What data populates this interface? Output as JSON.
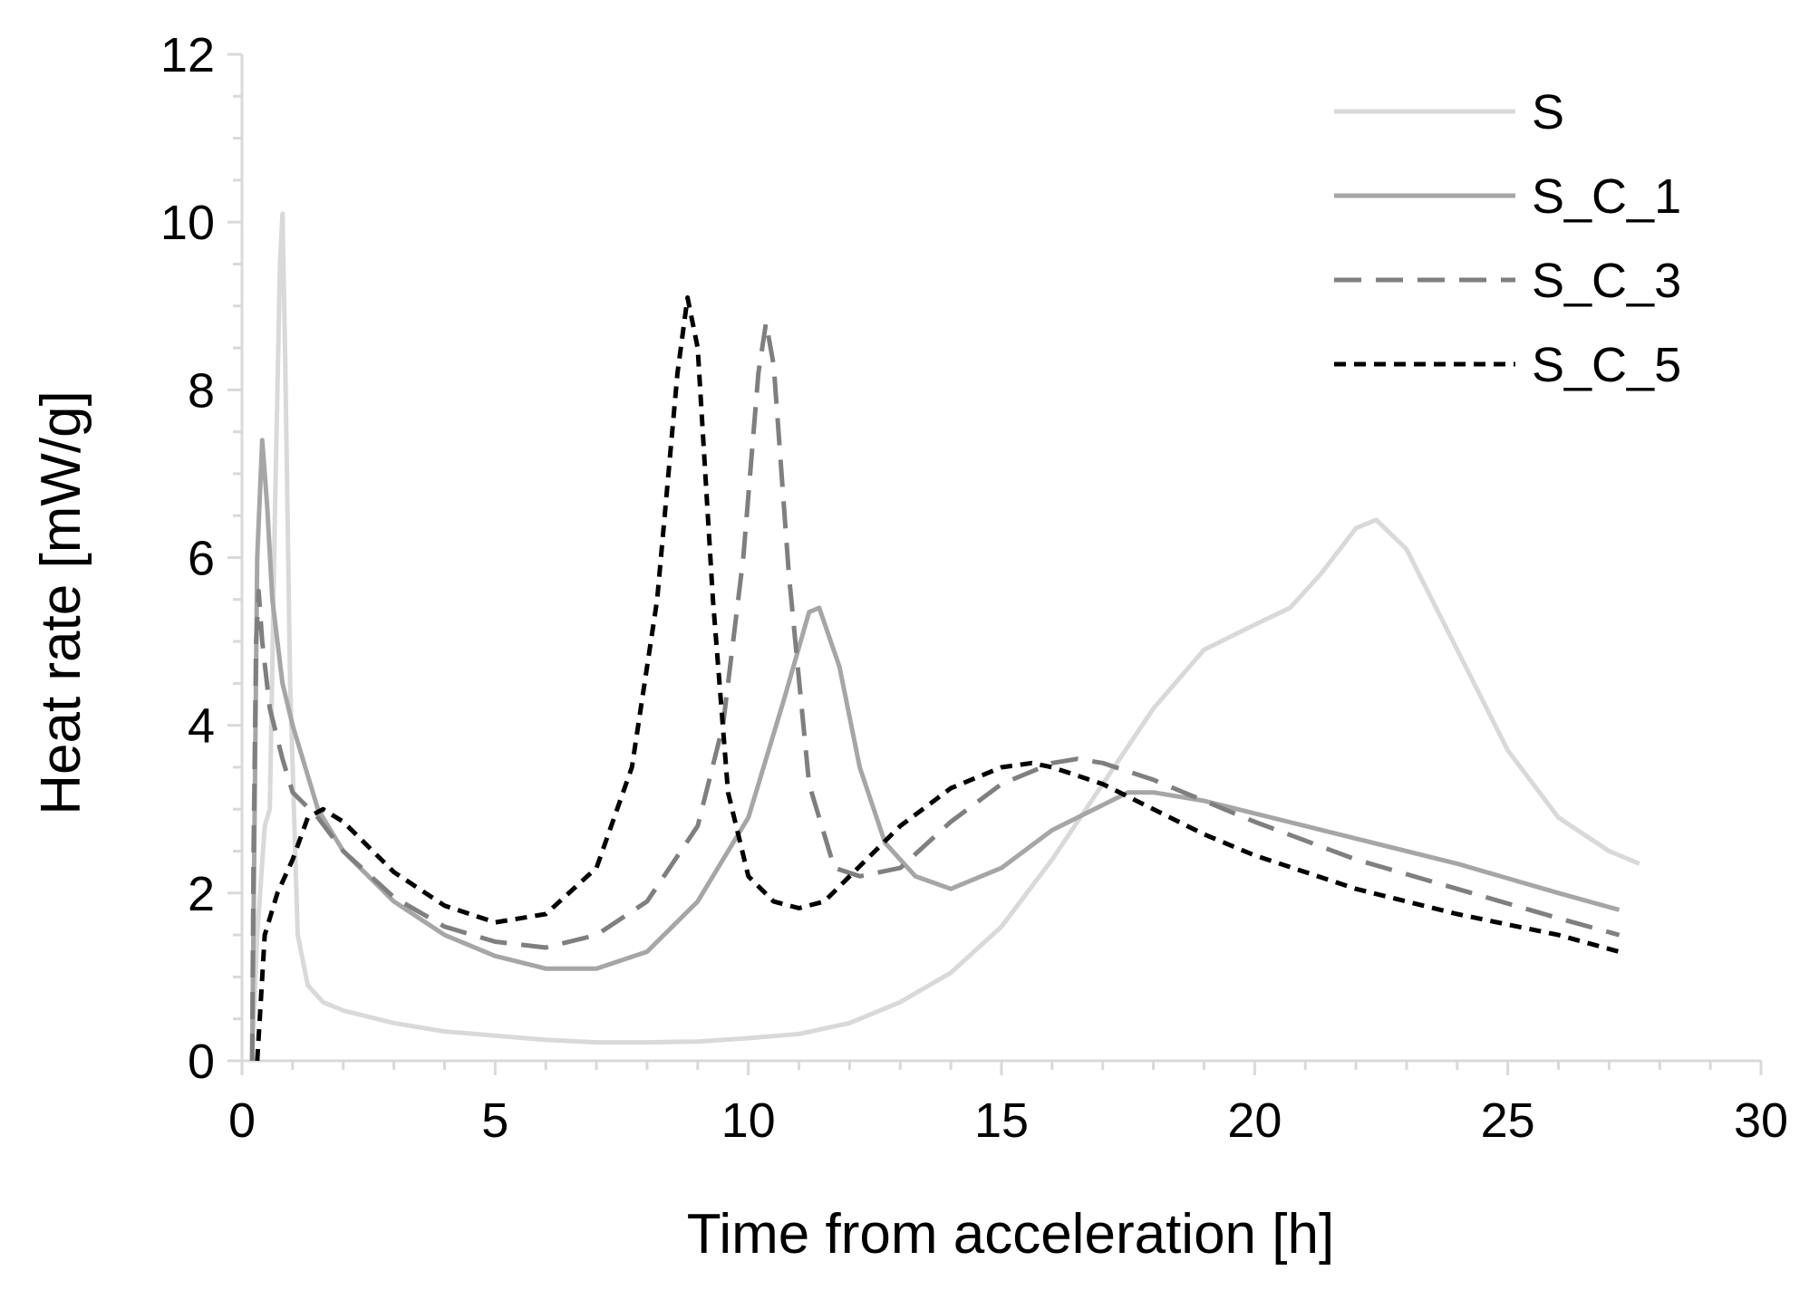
{
  "chart_data": {
    "type": "line",
    "title": "",
    "xlabel": "Time from acceleration [h]",
    "ylabel": "Heat rate [mW/g]",
    "xlim": [
      0,
      30
    ],
    "ylim": [
      0,
      12
    ],
    "x_ticks": [
      0,
      5,
      10,
      15,
      20,
      25,
      30
    ],
    "y_ticks": [
      0,
      2,
      4,
      6,
      8,
      10,
      12
    ],
    "x_tick_labels": [
      "0",
      "5",
      "10",
      "15",
      "20",
      "25",
      "30"
    ],
    "y_tick_labels": [
      "0",
      "2",
      "4",
      "6",
      "8",
      "10",
      "12"
    ],
    "grid": false,
    "legend_position": "top-right",
    "series": [
      {
        "name": "S",
        "color": "#d9d9d9",
        "dash": "solid",
        "points": [
          [
            0.2,
            0.0
          ],
          [
            0.3,
            1.5
          ],
          [
            0.45,
            2.8
          ],
          [
            0.55,
            3.0
          ],
          [
            0.65,
            6.5
          ],
          [
            0.75,
            9.5
          ],
          [
            0.8,
            10.1
          ],
          [
            0.85,
            8.5
          ],
          [
            0.95,
            4.5
          ],
          [
            1.1,
            1.5
          ],
          [
            1.3,
            0.9
          ],
          [
            1.6,
            0.7
          ],
          [
            2.0,
            0.6
          ],
          [
            3.0,
            0.45
          ],
          [
            4.0,
            0.35
          ],
          [
            5.0,
            0.3
          ],
          [
            6.0,
            0.25
          ],
          [
            7.0,
            0.22
          ],
          [
            8.0,
            0.22
          ],
          [
            9.0,
            0.23
          ],
          [
            10.0,
            0.27
          ],
          [
            11.0,
            0.32
          ],
          [
            12.0,
            0.45
          ],
          [
            13.0,
            0.7
          ],
          [
            14.0,
            1.05
          ],
          [
            15.0,
            1.6
          ],
          [
            16.0,
            2.4
          ],
          [
            17.0,
            3.3
          ],
          [
            18.0,
            4.2
          ],
          [
            19.0,
            4.9
          ],
          [
            20.0,
            5.2
          ],
          [
            20.7,
            5.4
          ],
          [
            21.3,
            5.8
          ],
          [
            22.0,
            6.35
          ],
          [
            22.4,
            6.45
          ],
          [
            23.0,
            6.1
          ],
          [
            24.0,
            4.9
          ],
          [
            25.0,
            3.7
          ],
          [
            26.0,
            2.9
          ],
          [
            27.0,
            2.5
          ],
          [
            27.6,
            2.35
          ]
        ]
      },
      {
        "name": "S_C_1",
        "color": "#a6a6a6",
        "dash": "solid",
        "points": [
          [
            0.2,
            0.0
          ],
          [
            0.25,
            3.0
          ],
          [
            0.3,
            6.0
          ],
          [
            0.4,
            7.4
          ],
          [
            0.5,
            6.6
          ],
          [
            0.6,
            5.5
          ],
          [
            0.8,
            4.5
          ],
          [
            1.0,
            4.0
          ],
          [
            1.5,
            3.0
          ],
          [
            2.0,
            2.5
          ],
          [
            3.0,
            1.9
          ],
          [
            4.0,
            1.5
          ],
          [
            5.0,
            1.25
          ],
          [
            6.0,
            1.1
          ],
          [
            7.0,
            1.1
          ],
          [
            8.0,
            1.3
          ],
          [
            9.0,
            1.9
          ],
          [
            10.0,
            2.9
          ],
          [
            10.7,
            4.3
          ],
          [
            11.2,
            5.35
          ],
          [
            11.4,
            5.4
          ],
          [
            11.8,
            4.7
          ],
          [
            12.2,
            3.5
          ],
          [
            12.7,
            2.6
          ],
          [
            13.3,
            2.2
          ],
          [
            14.0,
            2.05
          ],
          [
            15.0,
            2.3
          ],
          [
            16.0,
            2.75
          ],
          [
            17.0,
            3.05
          ],
          [
            17.5,
            3.2
          ],
          [
            18.0,
            3.2
          ],
          [
            19.0,
            3.1
          ],
          [
            20.0,
            2.95
          ],
          [
            22.0,
            2.65
          ],
          [
            24.0,
            2.35
          ],
          [
            26.0,
            2.0
          ],
          [
            27.2,
            1.8
          ]
        ]
      },
      {
        "name": "S_C_3",
        "color": "#7f7f7f",
        "dash": "dashed",
        "points": [
          [
            0.2,
            0.0
          ],
          [
            0.23,
            2.5
          ],
          [
            0.28,
            5.0
          ],
          [
            0.33,
            5.6
          ],
          [
            0.4,
            5.0
          ],
          [
            0.55,
            4.2
          ],
          [
            0.8,
            3.6
          ],
          [
            1.0,
            3.2
          ],
          [
            1.5,
            2.9
          ],
          [
            2.0,
            2.5
          ],
          [
            3.0,
            1.95
          ],
          [
            4.0,
            1.6
          ],
          [
            5.0,
            1.42
          ],
          [
            6.0,
            1.35
          ],
          [
            7.0,
            1.5
          ],
          [
            8.0,
            1.9
          ],
          [
            9.0,
            2.8
          ],
          [
            9.5,
            4.0
          ],
          [
            9.9,
            6.0
          ],
          [
            10.2,
            8.2
          ],
          [
            10.35,
            8.8
          ],
          [
            10.5,
            8.3
          ],
          [
            10.8,
            5.8
          ],
          [
            11.2,
            3.3
          ],
          [
            11.7,
            2.3
          ],
          [
            12.2,
            2.2
          ],
          [
            13.0,
            2.3
          ],
          [
            14.0,
            2.85
          ],
          [
            15.0,
            3.3
          ],
          [
            16.0,
            3.55
          ],
          [
            16.5,
            3.6
          ],
          [
            17.0,
            3.55
          ],
          [
            18.0,
            3.35
          ],
          [
            19.0,
            3.1
          ],
          [
            20.0,
            2.85
          ],
          [
            22.0,
            2.4
          ],
          [
            24.0,
            2.05
          ],
          [
            26.0,
            1.7
          ],
          [
            27.2,
            1.5
          ]
        ]
      },
      {
        "name": "S_C_5",
        "color": "#000000",
        "dash": "dotted",
        "points": [
          [
            0.3,
            0.0
          ],
          [
            0.35,
            0.5
          ],
          [
            0.45,
            1.5
          ],
          [
            0.7,
            2.0
          ],
          [
            1.0,
            2.4
          ],
          [
            1.3,
            2.9
          ],
          [
            1.6,
            3.0
          ],
          [
            2.0,
            2.85
          ],
          [
            2.5,
            2.55
          ],
          [
            3.0,
            2.25
          ],
          [
            4.0,
            1.85
          ],
          [
            5.0,
            1.65
          ],
          [
            6.0,
            1.75
          ],
          [
            7.0,
            2.3
          ],
          [
            7.7,
            3.5
          ],
          [
            8.2,
            5.5
          ],
          [
            8.6,
            8.2
          ],
          [
            8.8,
            9.1
          ],
          [
            9.0,
            8.5
          ],
          [
            9.3,
            5.5
          ],
          [
            9.6,
            3.2
          ],
          [
            10.0,
            2.2
          ],
          [
            10.5,
            1.9
          ],
          [
            11.0,
            1.82
          ],
          [
            11.5,
            1.9
          ],
          [
            12.0,
            2.2
          ],
          [
            13.0,
            2.8
          ],
          [
            14.0,
            3.25
          ],
          [
            15.0,
            3.5
          ],
          [
            15.6,
            3.55
          ],
          [
            16.0,
            3.5
          ],
          [
            17.0,
            3.3
          ],
          [
            18.0,
            3.0
          ],
          [
            19.0,
            2.7
          ],
          [
            20.0,
            2.45
          ],
          [
            22.0,
            2.05
          ],
          [
            24.0,
            1.75
          ],
          [
            26.0,
            1.5
          ],
          [
            27.2,
            1.3
          ]
        ]
      }
    ]
  }
}
